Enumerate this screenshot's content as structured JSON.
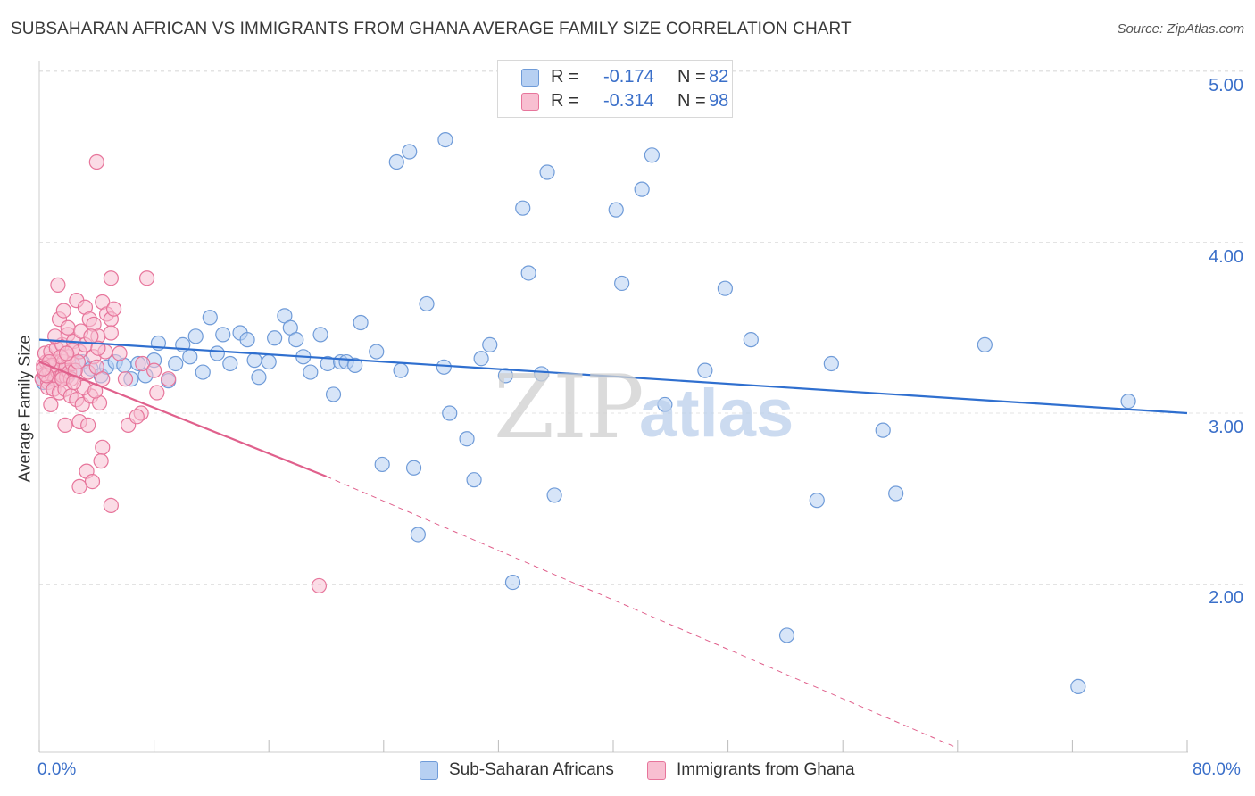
{
  "title": "SUBSAHARAN AFRICAN VS IMMIGRANTS FROM GHANA AVERAGE FAMILY SIZE CORRELATION CHART",
  "source": "Source: ZipAtlas.com",
  "watermark": {
    "zip": "ZIP",
    "atlas": "atlas"
  },
  "legend": {
    "rows": [
      {
        "r_label": "R =",
        "r_value": "-0.174",
        "n_label": "N =",
        "n_value": "82"
      },
      {
        "r_label": "R =",
        "r_value": "-0.314",
        "n_label": "N =",
        "n_value": "98"
      }
    ]
  },
  "colors": {
    "blue_fill": "#b7d0f2",
    "blue_stroke": "#6f9bd8",
    "blue_line": "#2f6fcf",
    "pink_fill": "#f8bfd1",
    "pink_stroke": "#e7759b",
    "pink_line": "#e0608c",
    "grid": "#e3e3e3",
    "axis_text": "#3a6fc9"
  },
  "chart_data": {
    "type": "scatter",
    "title": "SUBSAHARAN AFRICAN VS IMMIGRANTS FROM GHANA AVERAGE FAMILY SIZE CORRELATION CHART",
    "xlabel": "",
    "ylabel": "Average Family Size",
    "xlim": [
      0,
      80
    ],
    "ylim": [
      1.0,
      5.15
    ],
    "x_tick_labels": [
      "0.0%",
      "80.0%"
    ],
    "y_ticks": [
      2.0,
      3.0,
      4.0,
      5.0
    ],
    "y_tick_labels": [
      "2.00",
      "3.00",
      "4.00",
      "5.00"
    ],
    "grid": true,
    "legend_position": "top-center",
    "series": [
      {
        "name": "Sub-Saharan Africans",
        "R": -0.174,
        "N": 82,
        "trend": {
          "x0": 0,
          "y0": 3.43,
          "x1": 80,
          "y1": 3.0
        },
        "points": [
          [
            0.3,
            3.18
          ],
          [
            0.6,
            3.25
          ],
          [
            1.0,
            3.2
          ],
          [
            1.5,
            3.28
          ],
          [
            2.0,
            3.22
          ],
          [
            2.5,
            3.25
          ],
          [
            3.0,
            3.3
          ],
          [
            3.6,
            3.26
          ],
          [
            4.3,
            3.22
          ],
          [
            4.7,
            3.27
          ],
          [
            5.3,
            3.3
          ],
          [
            5.9,
            3.28
          ],
          [
            6.4,
            3.2
          ],
          [
            6.9,
            3.29
          ],
          [
            7.4,
            3.22
          ],
          [
            8.0,
            3.31
          ],
          [
            8.3,
            3.41
          ],
          [
            9.0,
            3.19
          ],
          [
            9.5,
            3.29
          ],
          [
            10.0,
            3.4
          ],
          [
            10.5,
            3.33
          ],
          [
            10.9,
            3.45
          ],
          [
            11.4,
            3.24
          ],
          [
            11.9,
            3.56
          ],
          [
            12.4,
            3.35
          ],
          [
            12.8,
            3.46
          ],
          [
            13.3,
            3.29
          ],
          [
            14.0,
            3.47
          ],
          [
            14.5,
            3.43
          ],
          [
            15.0,
            3.31
          ],
          [
            15.3,
            3.21
          ],
          [
            16.0,
            3.3
          ],
          [
            16.4,
            3.44
          ],
          [
            17.1,
            3.57
          ],
          [
            17.5,
            3.5
          ],
          [
            17.9,
            3.43
          ],
          [
            18.4,
            3.33
          ],
          [
            18.9,
            3.24
          ],
          [
            19.6,
            3.46
          ],
          [
            20.1,
            3.29
          ],
          [
            20.5,
            3.11
          ],
          [
            21.0,
            3.3
          ],
          [
            21.4,
            3.3
          ],
          [
            22.0,
            3.28
          ],
          [
            22.4,
            3.53
          ],
          [
            23.5,
            3.36
          ],
          [
            23.9,
            2.7
          ],
          [
            24.9,
            4.47
          ],
          [
            25.2,
            3.25
          ],
          [
            25.8,
            4.53
          ],
          [
            26.1,
            2.68
          ],
          [
            26.4,
            2.29
          ],
          [
            27.0,
            3.64
          ],
          [
            28.2,
            3.27
          ],
          [
            28.3,
            4.6
          ],
          [
            28.6,
            3.0
          ],
          [
            29.8,
            2.85
          ],
          [
            30.3,
            2.61
          ],
          [
            30.8,
            3.32
          ],
          [
            31.4,
            3.4
          ],
          [
            32.5,
            3.22
          ],
          [
            33.0,
            2.01
          ],
          [
            33.7,
            4.2
          ],
          [
            34.1,
            3.82
          ],
          [
            35.0,
            3.23
          ],
          [
            35.4,
            4.41
          ],
          [
            35.9,
            2.52
          ],
          [
            40.2,
            4.19
          ],
          [
            40.6,
            3.76
          ],
          [
            42.0,
            4.31
          ],
          [
            42.7,
            4.51
          ],
          [
            43.6,
            3.05
          ],
          [
            46.4,
            3.25
          ],
          [
            47.8,
            3.73
          ],
          [
            49.6,
            3.43
          ],
          [
            52.1,
            1.7
          ],
          [
            54.2,
            2.49
          ],
          [
            55.2,
            3.29
          ],
          [
            58.8,
            2.9
          ],
          [
            59.7,
            2.53
          ],
          [
            65.9,
            3.4
          ],
          [
            72.4,
            1.4
          ],
          [
            75.9,
            3.07
          ]
        ]
      },
      {
        "name": "Immigrants from Ghana",
        "R": -0.314,
        "N": 98,
        "trend": {
          "x0": 0,
          "y0": 3.3,
          "x1": 20,
          "y1": 2.63
        },
        "trend_dashed": {
          "x0": 20,
          "y0": 2.63,
          "x1": 64,
          "y1": 1.04
        },
        "points": [
          [
            0.2,
            3.2
          ],
          [
            0.3,
            3.28
          ],
          [
            0.4,
            3.23
          ],
          [
            0.5,
            3.3
          ],
          [
            0.6,
            3.18
          ],
          [
            0.7,
            3.25
          ],
          [
            0.8,
            3.32
          ],
          [
            0.9,
            3.22
          ],
          [
            1.0,
            3.27
          ],
          [
            1.1,
            3.2
          ],
          [
            1.2,
            3.3
          ],
          [
            1.3,
            3.24
          ],
          [
            1.4,
            3.19
          ],
          [
            1.5,
            3.28
          ],
          [
            1.6,
            3.22
          ],
          [
            1.7,
            3.3
          ],
          [
            1.8,
            3.26
          ],
          [
            1.9,
            3.21
          ],
          [
            2.0,
            3.33
          ],
          [
            2.1,
            3.24
          ],
          [
            2.2,
            3.2
          ],
          [
            2.3,
            3.29
          ],
          [
            0.4,
            3.35
          ],
          [
            0.6,
            3.15
          ],
          [
            0.8,
            3.36
          ],
          [
            1.0,
            3.14
          ],
          [
            1.2,
            3.38
          ],
          [
            1.4,
            3.12
          ],
          [
            1.6,
            3.4
          ],
          [
            1.8,
            3.14
          ],
          [
            2.0,
            3.46
          ],
          [
            2.2,
            3.1
          ],
          [
            2.4,
            3.42
          ],
          [
            2.6,
            3.08
          ],
          [
            2.8,
            3.36
          ],
          [
            3.0,
            3.05
          ],
          [
            3.2,
            3.4
          ],
          [
            3.4,
            3.24
          ],
          [
            3.6,
            3.1
          ],
          [
            3.8,
            3.33
          ],
          [
            4.0,
            3.27
          ],
          [
            4.2,
            3.06
          ],
          [
            4.4,
            3.2
          ],
          [
            4.6,
            3.36
          ],
          [
            0.8,
            3.05
          ],
          [
            1.1,
            3.45
          ],
          [
            1.4,
            3.55
          ],
          [
            1.7,
            3.6
          ],
          [
            2.0,
            3.5
          ],
          [
            2.3,
            3.37
          ],
          [
            2.6,
            3.66
          ],
          [
            2.9,
            3.48
          ],
          [
            3.2,
            3.62
          ],
          [
            3.5,
            3.55
          ],
          [
            3.8,
            3.52
          ],
          [
            4.1,
            3.45
          ],
          [
            4.4,
            3.65
          ],
          [
            4.7,
            3.58
          ],
          [
            5.0,
            3.55
          ],
          [
            5.2,
            3.61
          ],
          [
            5.0,
            3.47
          ],
          [
            1.3,
            3.75
          ],
          [
            5.0,
            3.79
          ],
          [
            7.5,
            3.79
          ],
          [
            4.0,
            4.47
          ],
          [
            1.8,
            2.93
          ],
          [
            2.8,
            2.95
          ],
          [
            3.3,
            2.66
          ],
          [
            3.7,
            2.6
          ],
          [
            4.4,
            2.8
          ],
          [
            4.3,
            2.72
          ],
          [
            5.0,
            2.46
          ],
          [
            2.8,
            2.57
          ],
          [
            3.4,
            2.93
          ],
          [
            6.2,
            2.93
          ],
          [
            7.1,
            3.0
          ],
          [
            6.8,
            2.98
          ],
          [
            7.2,
            3.29
          ],
          [
            6.0,
            3.2
          ],
          [
            5.6,
            3.35
          ],
          [
            8.2,
            3.12
          ],
          [
            9.0,
            3.2
          ],
          [
            8.0,
            3.25
          ],
          [
            3.1,
            3.15
          ],
          [
            2.5,
            3.25
          ],
          [
            1.6,
            3.2
          ],
          [
            0.9,
            3.28
          ],
          [
            1.5,
            3.33
          ],
          [
            2.7,
            3.3
          ],
          [
            4.1,
            3.38
          ],
          [
            3.6,
            3.45
          ],
          [
            0.5,
            3.22
          ],
          [
            0.7,
            3.3
          ],
          [
            1.9,
            3.35
          ],
          [
            2.4,
            3.18
          ],
          [
            3.9,
            3.13
          ],
          [
            19.5,
            1.99
          ],
          [
            0.3,
            3.26
          ]
        ]
      }
    ]
  },
  "bottom_legend": [
    {
      "label": "Sub-Saharan Africans"
    },
    {
      "label": "Immigrants from Ghana"
    }
  ]
}
